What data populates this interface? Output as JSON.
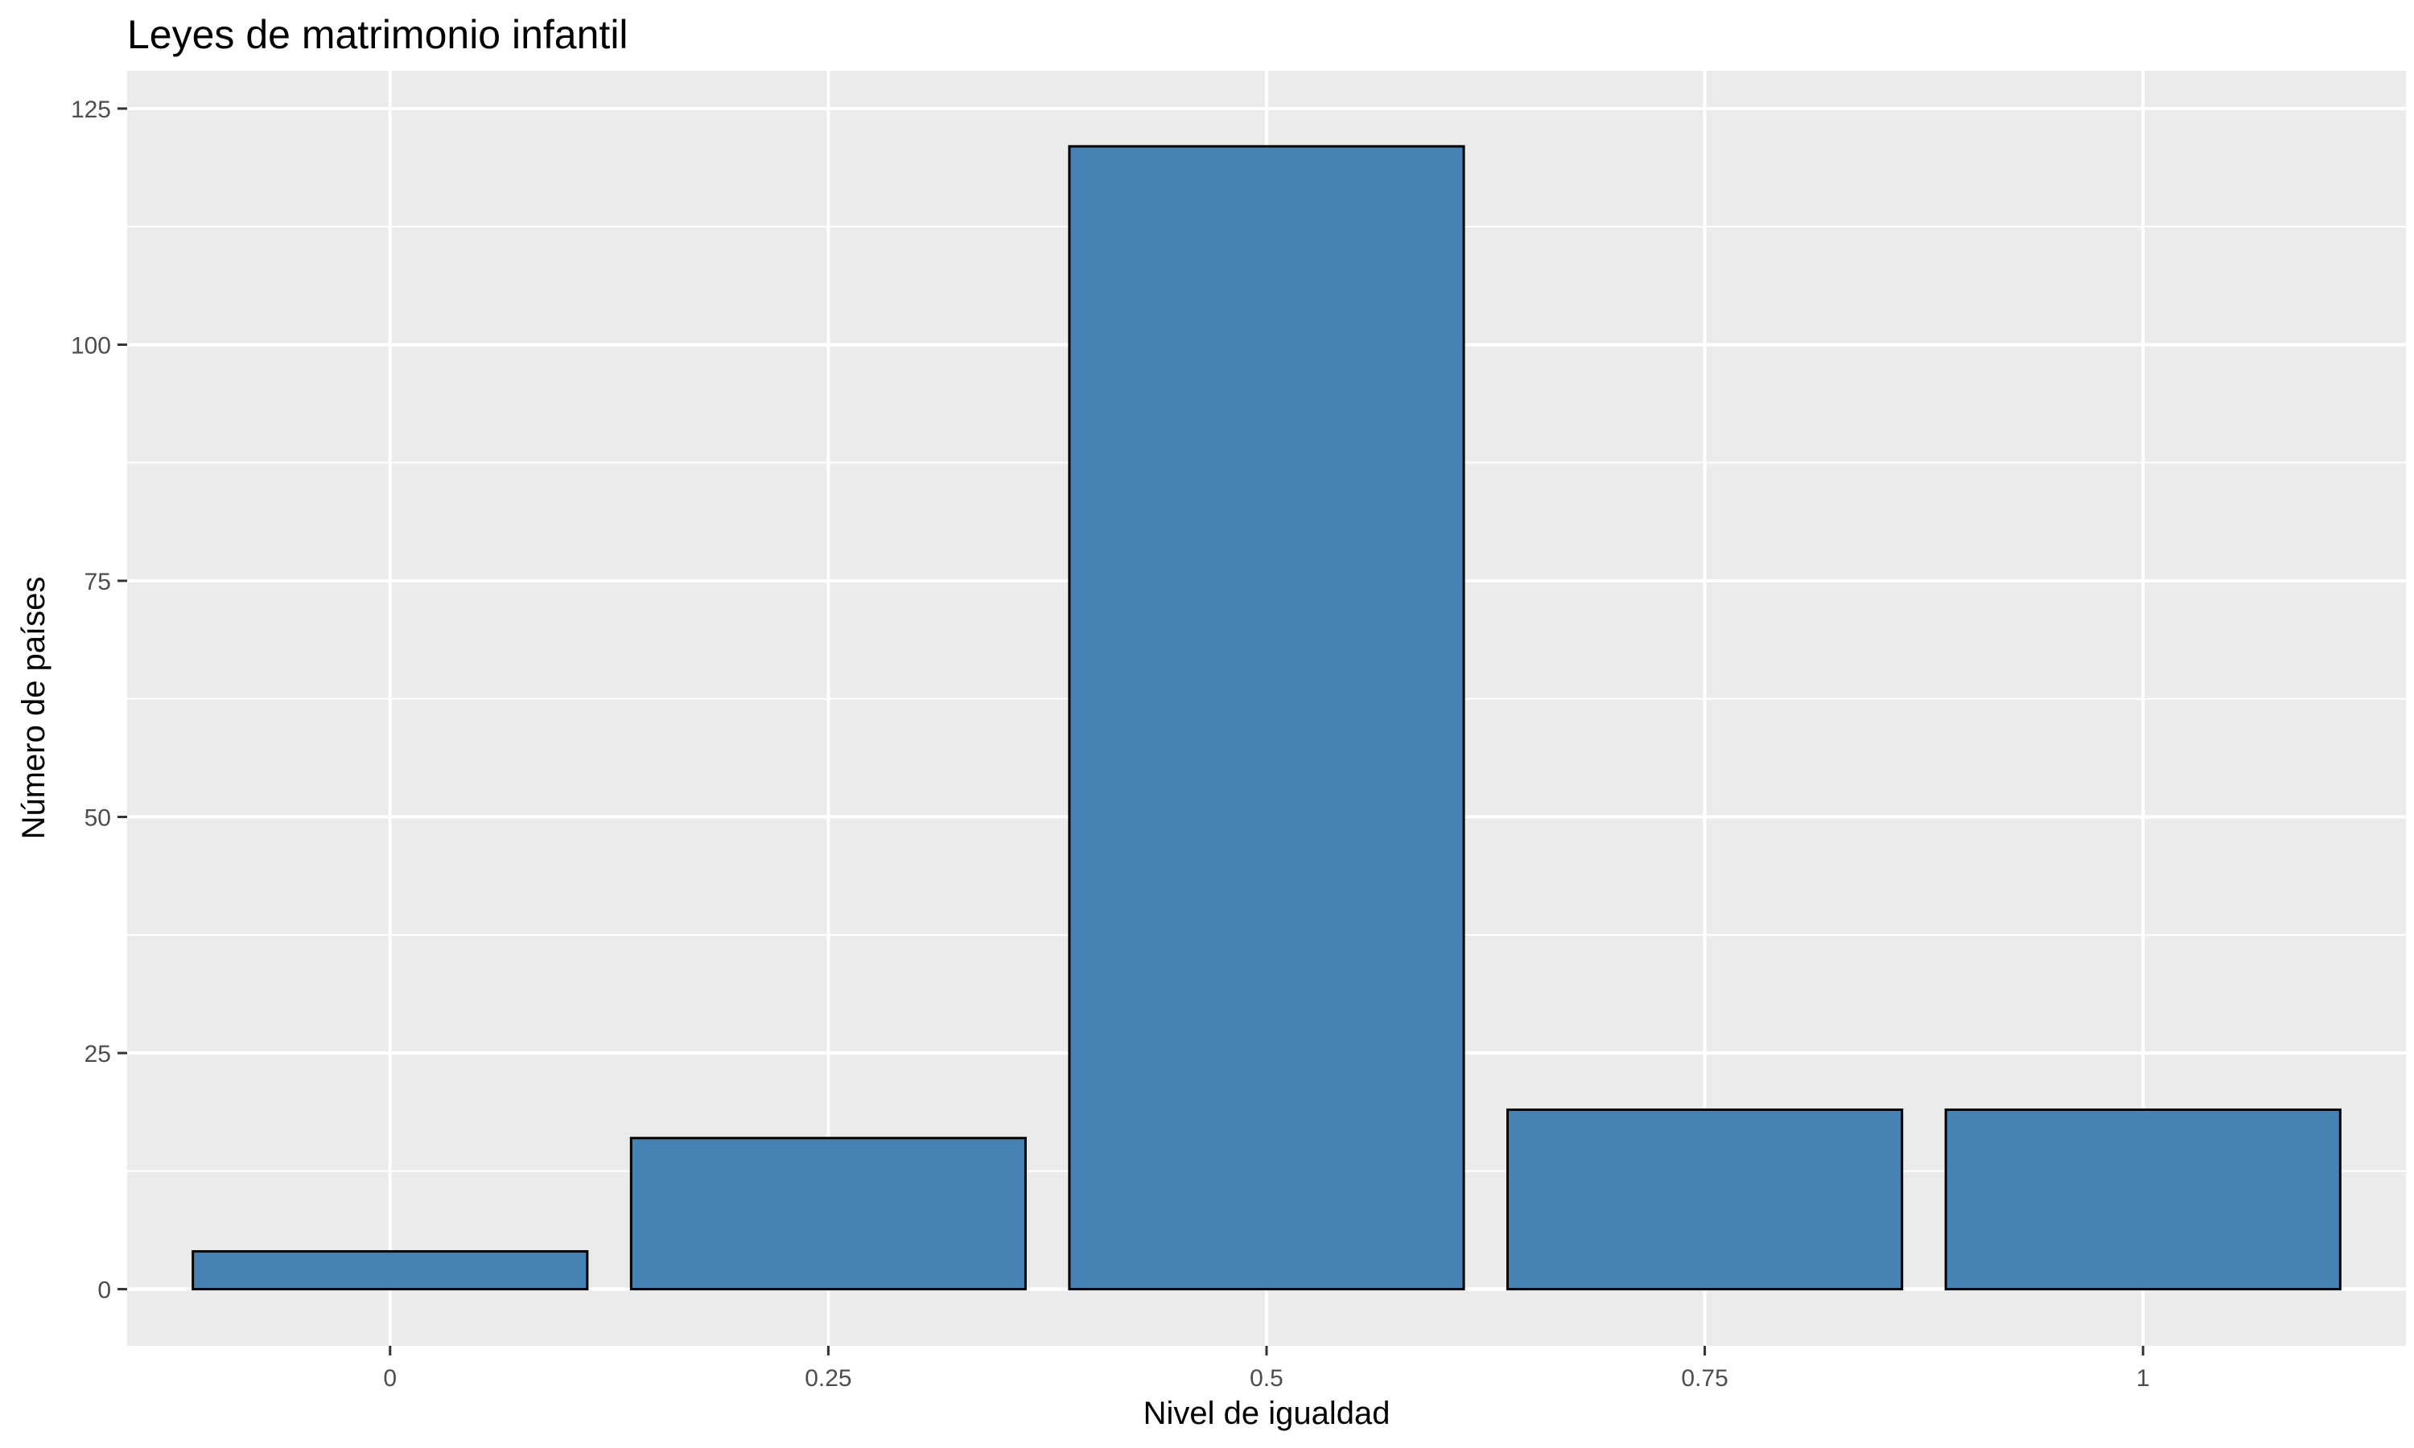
{
  "chart_data": {
    "type": "bar",
    "title": "Leyes de matrimonio infantil",
    "xlabel": "Nivel de igualdad",
    "ylabel": "Número de países",
    "categories": [
      "0",
      "0.25",
      "0.5",
      "0.75",
      "1"
    ],
    "values": [
      4,
      16,
      121,
      19,
      19
    ],
    "yticks": [
      "0",
      "25",
      "50",
      "75",
      "100",
      "125"
    ],
    "ylim": [
      -6,
      129
    ],
    "grid": true,
    "legend": "none",
    "colors": {
      "bar_fill": "#4682B4",
      "bar_outline": "#000000",
      "panel_background": "#EBEBEB",
      "grid": "#FFFFFF"
    }
  }
}
